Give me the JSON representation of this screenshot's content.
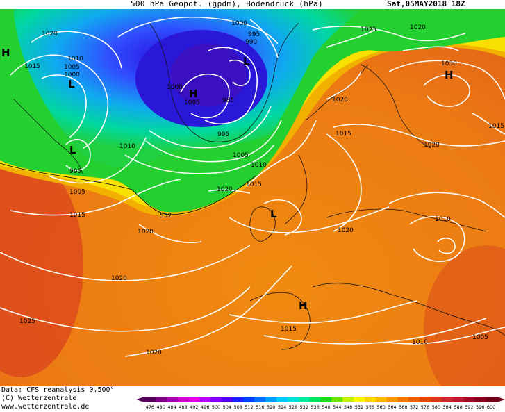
{
  "header": {
    "title": "500 hPa Geopot. (gpdm), Bodendruck (hPa)",
    "date": "Sat,05MAY2018 18Z"
  },
  "footer": {
    "line1": "Data: CFS reanalysis 0.500°",
    "line2": "(C) Wetterzentrale",
    "line3": "www.wetterzentrale.de"
  },
  "legend": {
    "values": [
      "476",
      "480",
      "484",
      "488",
      "492",
      "496",
      "500",
      "504",
      "508",
      "512",
      "516",
      "520",
      "524",
      "528",
      "532",
      "536",
      "540",
      "544",
      "548",
      "552",
      "556",
      "560",
      "564",
      "568",
      "572",
      "576",
      "580",
      "584",
      "588",
      "592",
      "596",
      "600"
    ],
    "colors": [
      "#55005a",
      "#7a0080",
      "#a000a8",
      "#c800c8",
      "#e000e0",
      "#b000ff",
      "#8000ff",
      "#5000ff",
      "#2020ff",
      "#0040ff",
      "#0070ff",
      "#00a0ff",
      "#00c8ff",
      "#00e0d8",
      "#00e8a0",
      "#00e060",
      "#20d820",
      "#70e000",
      "#c0f000",
      "#f8f800",
      "#f8d800",
      "#f8b800",
      "#f89800",
      "#f07800",
      "#e86000",
      "#e04800",
      "#d83820",
      "#c82830",
      "#b81830",
      "#a00a28",
      "#880020",
      "#700018"
    ]
  },
  "map": {
    "isobar_labels": [
      "1020",
      "1015",
      "1010",
      "1005",
      "1000",
      "L",
      "1000",
      "995",
      "990",
      "985",
      "1005",
      "H",
      "995",
      "1000",
      "1005",
      "1010",
      "1015",
      "1020",
      "1025",
      "1020",
      "1030",
      "H",
      "1015",
      "1020",
      "1010",
      "L",
      "1010",
      "995",
      "1005",
      "1015",
      "552",
      "1020",
      "1020",
      "1010",
      "1015",
      "L",
      "1020",
      "1020",
      "H",
      "1015",
      "1010",
      "1005",
      "1025",
      "1020",
      "1025",
      "1020",
      "H",
      "L"
    ],
    "geopotential_label": "552"
  }
}
